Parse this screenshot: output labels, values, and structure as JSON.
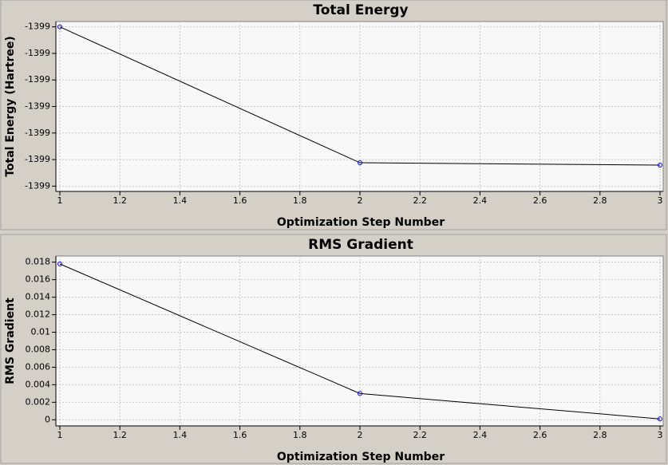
{
  "chart_data": [
    {
      "type": "line",
      "title": "Total Energy",
      "xlabel": "Optimization Step Number",
      "ylabel": "Total Energy (Hartree)",
      "x": [
        1,
        2,
        3
      ],
      "values": [
        -1398.97,
        -1399.0212,
        -1399.0221
      ],
      "color": "#000000",
      "marker_color": "#0000ff",
      "xlim": [
        1,
        3
      ],
      "xticks": [
        1,
        1.2,
        1.4,
        1.6,
        1.8,
        2,
        2.2,
        2.4,
        2.6,
        2.8,
        3
      ],
      "ylim": [
        -1399.032,
        -1398.968
      ],
      "yticks": [
        {
          "value": -1398.97,
          "label": "-1399"
        },
        {
          "value": -1398.98,
          "label": "-1399"
        },
        {
          "value": -1398.99,
          "label": "-1399"
        },
        {
          "value": -1399.0,
          "label": "-1399"
        },
        {
          "value": -1399.01,
          "label": "-1399"
        },
        {
          "value": -1399.02,
          "label": "-1399"
        },
        {
          "value": -1399.03,
          "label": "-1399"
        }
      ],
      "grid": true
    },
    {
      "type": "line",
      "title": "RMS Gradient",
      "xlabel": "Optimization Step Number",
      "ylabel": "RMS Gradient",
      "x": [
        1,
        2,
        3
      ],
      "values": [
        0.0178,
        0.003,
        0.0001
      ],
      "color": "#000000",
      "marker_color": "#0000ff",
      "xlim": [
        1,
        3
      ],
      "xticks": [
        1,
        1.2,
        1.4,
        1.6,
        1.8,
        2,
        2.2,
        2.4,
        2.6,
        2.8,
        3
      ],
      "ylim": [
        -0.0007,
        0.0187
      ],
      "yticks": [
        0,
        0.002,
        0.004,
        0.006,
        0.008,
        0.01,
        0.012,
        0.014,
        0.016,
        0.018
      ],
      "grid": true
    }
  ]
}
